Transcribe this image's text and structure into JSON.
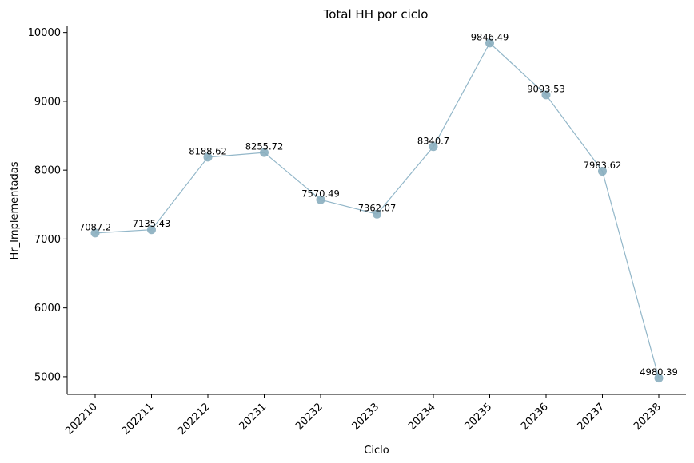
{
  "chart_data": {
    "type": "line",
    "title": "Total HH por ciclo",
    "xlabel": "Ciclo",
    "ylabel": "Hr_Implementadas",
    "categories": [
      "202210",
      "202211",
      "202212",
      "20231",
      "20232",
      "20233",
      "20234",
      "20235",
      "20236",
      "20237",
      "20238"
    ],
    "series": [
      {
        "values": [
          7087.2,
          7135.43,
          8188.62,
          8255.72,
          7570.49,
          7362.07,
          8340.7,
          9846.49,
          9093.53,
          7983.62,
          4980.39
        ],
        "labels": [
          "7087.2",
          "7135.43",
          "8188.62",
          "8255.72",
          "7570.49",
          "7362.07",
          "8340.7",
          "9846.49",
          "9093.53",
          "7983.62",
          "4980.39"
        ],
        "color": "#93b7c9"
      }
    ],
    "yticks": [
      "5000",
      "6000",
      "7000",
      "8000",
      "9000",
      "10000"
    ],
    "ylim": [
      4730,
      10090
    ],
    "grid": false,
    "legend": "none",
    "spines": "left-bottom"
  }
}
